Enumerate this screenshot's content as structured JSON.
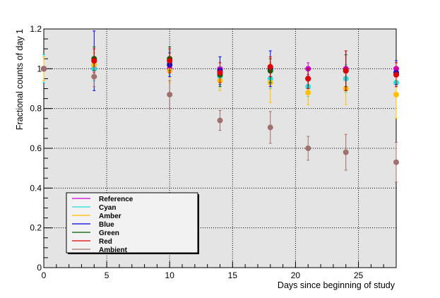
{
  "chart_data": {
    "type": "scatter",
    "title": "",
    "xlabel": "Days since beginning of study",
    "ylabel": "Fractional counts of day 1",
    "xlim": [
      0,
      28
    ],
    "ylim": [
      0,
      1.2
    ],
    "grid": true,
    "legend_position": "bottom-left",
    "x_ticks": [
      0,
      5,
      10,
      15,
      20,
      25
    ],
    "y_ticks": [
      0,
      0.2,
      0.4,
      0.6,
      0.8,
      1,
      1.2
    ],
    "y_tick_labels": [
      "0",
      "0.2",
      "0.4",
      "0.6",
      "0.8",
      "1",
      "1.2"
    ],
    "series": [
      {
        "name": "Reference",
        "color": "#d000d0",
        "x": [
          0,
          4,
          10,
          14,
          18,
          21,
          24,
          28
        ],
        "y": [
          1.0,
          1.0,
          1.0,
          1.0,
          1.0,
          1.0,
          1.0,
          1.0
        ],
        "err": [
          0.0,
          0.0,
          0.0,
          0.0,
          0.0,
          0.03,
          0.0,
          0.0
        ]
      },
      {
        "name": "Cyan",
        "color": "#20e0e0",
        "x": [
          0,
          4,
          10,
          14,
          18,
          21,
          24,
          28
        ],
        "y": [
          1.0,
          1.0,
          1.03,
          0.96,
          0.95,
          0.91,
          0.95,
          0.93
        ],
        "err": [
          0.07,
          0.06,
          0.06,
          0.05,
          0.05,
          0.05,
          0.07,
          0.06
        ]
      },
      {
        "name": "Amber",
        "color": "#ffc000",
        "x": [
          0,
          4,
          10,
          14,
          18,
          21,
          24,
          28
        ],
        "y": [
          1.0,
          1.02,
          0.99,
          0.94,
          0.93,
          0.88,
          0.9,
          0.87
        ],
        "err": [
          0.06,
          0.06,
          0.06,
          0.05,
          0.1,
          0.06,
          0.08,
          0.12
        ]
      },
      {
        "name": "Blue",
        "color": "#0000e0",
        "x": [
          0,
          4,
          10,
          14,
          18,
          21,
          24,
          28
        ],
        "y": [
          1.0,
          1.04,
          1.02,
          0.99,
          1.0,
          0.95,
          0.99,
          0.98
        ],
        "err": [
          0.0,
          0.15,
          0.06,
          0.07,
          0.09,
          0.05,
          0.1,
          0.06
        ]
      },
      {
        "name": "Green",
        "color": "#006000",
        "x": [
          0,
          4,
          10,
          14,
          18,
          21,
          24,
          28
        ],
        "y": [
          1.0,
          1.05,
          1.05,
          0.97,
          0.99,
          0.95,
          0.99,
          0.97
        ],
        "err": [
          0.0,
          0.06,
          0.06,
          0.06,
          0.06,
          0.05,
          0.08,
          0.06
        ]
      },
      {
        "name": "Red",
        "color": "#e00000",
        "x": [
          0,
          4,
          10,
          14,
          18,
          21,
          24,
          28
        ],
        "y": [
          1.0,
          1.04,
          1.04,
          0.98,
          1.01,
          0.95,
          0.99,
          0.97
        ],
        "err": [
          0.0,
          0.06,
          0.06,
          0.05,
          0.05,
          0.05,
          0.1,
          0.06
        ]
      },
      {
        "name": "Ambient",
        "color": "#a07070",
        "x": [
          0,
          4,
          10,
          14,
          18,
          21,
          24,
          28
        ],
        "y": [
          1.0,
          0.96,
          0.87,
          0.74,
          0.705,
          0.6,
          0.58,
          0.53
        ],
        "err": [
          0.0,
          0.05,
          0.07,
          0.05,
          0.08,
          0.06,
          0.09,
          0.1
        ]
      }
    ]
  }
}
